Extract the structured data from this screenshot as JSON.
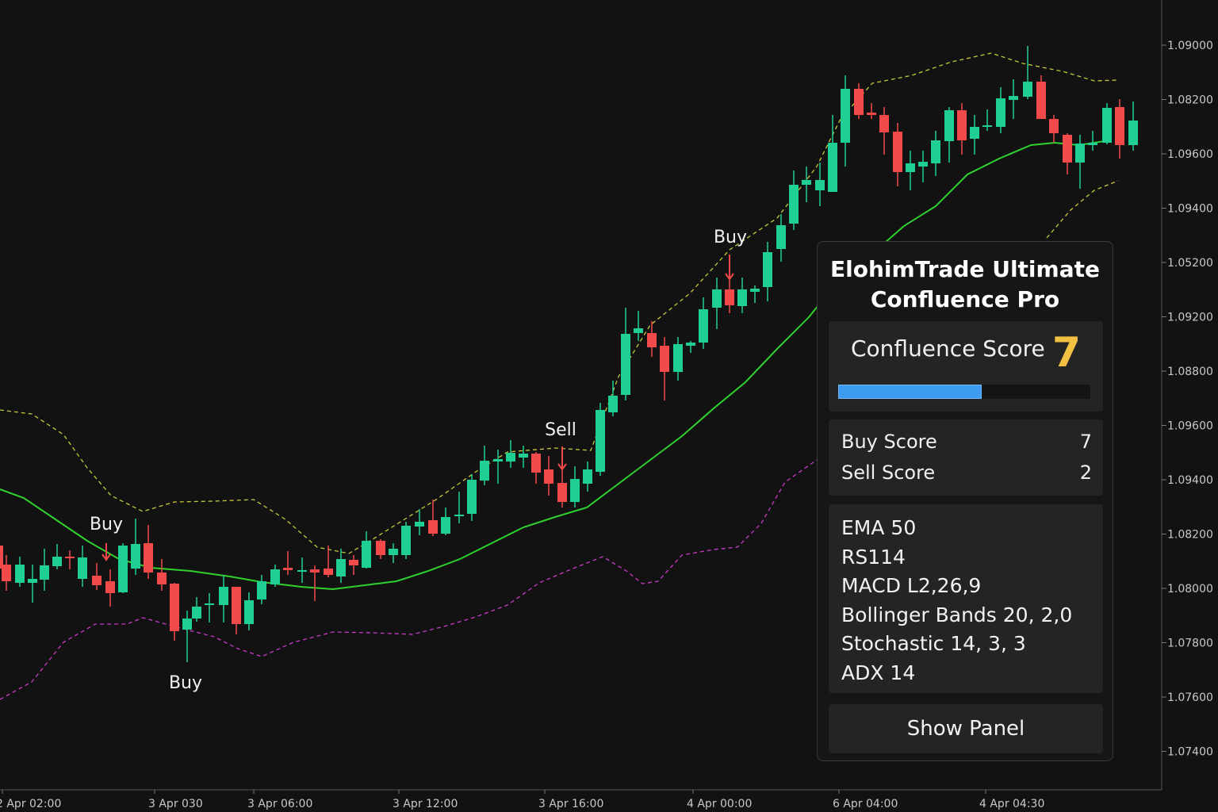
{
  "chart_data": {
    "type": "candlestick",
    "price_axis_labels": [
      "1.09000",
      "1.08200",
      "1.09600",
      "1.09400",
      "1.05200",
      "1.09200",
      "1.08800",
      "1.09600",
      "1.09400",
      "1.08200",
      "1.08000",
      "1.07800",
      "1.07600",
      "1.07400"
    ],
    "time_axis_labels": [
      "2 Apr 02:00",
      "3 Apr 030",
      "3 Apr 06:00",
      "3 Apr 12:00",
      "3 Apr 16:00",
      "4 Apr 00:00",
      "6 Apr 04:00",
      "4 Apr 04:30"
    ],
    "signals": [
      {
        "label": "Buy",
        "bar": 8,
        "side": "above"
      },
      {
        "label": "Buy",
        "bar": 13,
        "side": "below"
      },
      {
        "label": "Sell",
        "bar": 42,
        "side": "above"
      },
      {
        "label": "Buy",
        "bar": 55,
        "side": "above"
      }
    ],
    "series": [
      {
        "name": "EMA 50",
        "color": "#33cc33"
      },
      {
        "name": "Bollinger Upper",
        "color": "#c8c83a"
      },
      {
        "name": "Bollinger Lower",
        "color": "#c83ac8"
      }
    ],
    "colors": {
      "up": "#1fcf94",
      "down": "#f24a4a",
      "background": "#121212"
    }
  },
  "panel": {
    "title_line1": "ElohimTrade Ultimate",
    "title_line2": "Confluence Pro",
    "confluence_label": "Confluence Score",
    "confluence_value": "7",
    "confluence_fill_fraction": 0.57,
    "buy_label": "Buy Score",
    "buy_value": "7",
    "sell_label": "Sell Score",
    "sell_value": "2",
    "indicators": [
      "EMA 50",
      "RS114",
      "MACD L2,26,9",
      "Bollinger Bands 20, 2,0",
      "Stochastic 14, 3, 3",
      "ADX 14"
    ],
    "show_panel_label": "Show Panel",
    "accent_color": "#f2c042",
    "bar_color": "#3d9cf0"
  }
}
